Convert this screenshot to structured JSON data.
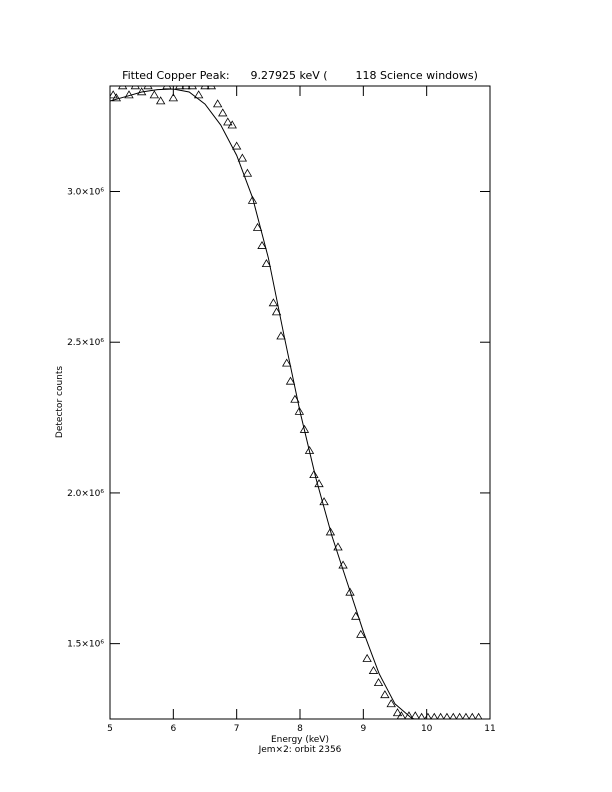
{
  "chart_data": {
    "type": "scatter",
    "title": "Fitted Copper Peak:      9.27925 keV (        118 Science windows)",
    "x_label": "Energy (keV)",
    "subtitle": "Jem×2: orbit 2356",
    "y_label": "Detector counts",
    "xlim": [
      5,
      11
    ],
    "xticks": [
      5,
      6,
      7,
      8,
      9,
      10,
      11
    ],
    "ylim": [
      1250000,
      3350000
    ],
    "yticks": [
      {
        "value": 1500000,
        "label": "1.5×10⁶"
      },
      {
        "value": 2000000,
        "label": "2.0×10⁶"
      },
      {
        "value": 2500000,
        "label": "2.5×10⁶"
      },
      {
        "value": 3000000,
        "label": "3.0×10⁶"
      }
    ],
    "color": "#000000",
    "series": [
      {
        "type": "scatter",
        "marker": "triangle",
        "x": [
          5.05,
          5.1,
          5.2,
          5.3,
          5.4,
          5.5,
          5.6,
          5.7,
          5.8,
          5.9,
          6.0,
          6.1,
          6.2,
          6.3,
          6.4,
          6.5,
          6.6,
          6.7,
          6.78,
          6.86,
          6.93,
          7.0,
          7.09,
          7.17,
          7.25,
          7.33,
          7.4,
          7.47,
          7.58,
          7.63,
          7.7,
          7.79,
          7.85,
          7.92,
          7.99,
          8.07,
          8.15,
          8.22,
          8.3,
          8.38,
          8.48,
          8.6,
          8.68,
          8.79,
          8.88,
          8.96,
          9.06,
          9.16,
          9.24,
          9.34,
          9.44,
          9.54,
          9.6,
          9.72,
          9.82,
          9.92,
          10.02,
          10.12,
          10.22,
          10.32,
          10.42,
          10.52,
          10.62,
          10.72,
          10.82
        ],
        "values": [
          3320000,
          3310000,
          3350000,
          3320000,
          3350000,
          3330000,
          3350000,
          3320000,
          3300000,
          3350000,
          3310000,
          3350000,
          3350000,
          3350000,
          3320000,
          3350000,
          3350000,
          3290000,
          3260000,
          3230000,
          3220000,
          3150000,
          3110000,
          3060000,
          2970000,
          2880000,
          2820000,
          2760000,
          2630000,
          2600000,
          2520000,
          2430000,
          2370000,
          2310000,
          2270000,
          2210000,
          2140000,
          2060000,
          2030000,
          1970000,
          1870000,
          1820000,
          1760000,
          1670000,
          1590000,
          1530000,
          1450000,
          1410000,
          1370000,
          1330000,
          1300000,
          1270000,
          1260000,
          1260000,
          1260000,
          1255000,
          1255000,
          1255000,
          1255000,
          1255000,
          1255000,
          1255000,
          1255000,
          1255000,
          1255000
        ]
      },
      {
        "type": "line",
        "x": [
          5.0,
          5.25,
          5.5,
          5.75,
          6.0,
          6.25,
          6.5,
          6.75,
          7.0,
          7.25,
          7.5,
          7.75,
          8.0,
          8.25,
          8.5,
          8.75,
          9.0,
          9.25,
          9.5,
          9.75,
          10.0
        ],
        "values": [
          3300000,
          3315000,
          3330000,
          3338000,
          3340000,
          3330000,
          3290000,
          3220000,
          3120000,
          2980000,
          2780000,
          2520000,
          2270000,
          2050000,
          1860000,
          1700000,
          1540000,
          1400000,
          1300000,
          1255000,
          1230000
        ]
      }
    ]
  }
}
